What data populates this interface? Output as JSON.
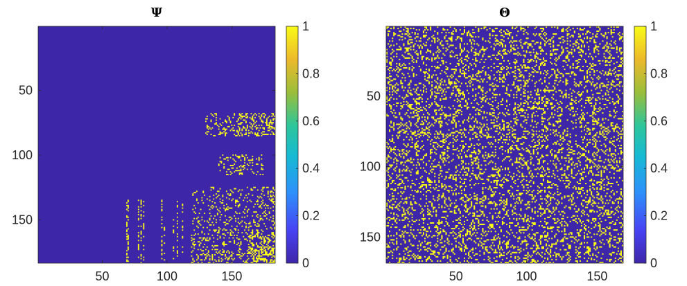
{
  "colors": {
    "background": "#3e26a8",
    "highlight": "#f9fb15",
    "colormap": [
      "#3e26a8",
      "#4743f3",
      "#2d91fb",
      "#16b9d4",
      "#2dc69b",
      "#9abe3b",
      "#ecb92b",
      "#f9fb15"
    ]
  },
  "chart_data": [
    {
      "type": "heatmap",
      "title": "Ψ",
      "matrix_size": [
        183,
        183
      ],
      "xlim": [
        1,
        183
      ],
      "ylim": [
        1,
        183
      ],
      "xticks": [
        50,
        100,
        150
      ],
      "yticks": [
        50,
        100,
        150
      ],
      "xtick_labels": [
        "50",
        "100",
        "150"
      ],
      "ytick_labels": [
        "50",
        "100",
        "150"
      ],
      "y_reversed": true,
      "value_range": [
        0,
        1
      ],
      "description_of_values": "binary matrix, mostly 0 with sparse 1 entries concentrated in lower-right region",
      "colorbar": {
        "ticks": [
          0,
          0.2,
          0.4,
          0.6,
          0.8,
          1
        ],
        "tick_labels": [
          "0",
          "0.2",
          "0.4",
          "0.6",
          "0.8",
          "1"
        ]
      }
    },
    {
      "type": "heatmap",
      "title": "Θ",
      "matrix_size": [
        168,
        168
      ],
      "xlim": [
        1,
        168
      ],
      "ylim": [
        1,
        168
      ],
      "xticks": [
        50,
        100,
        150
      ],
      "yticks": [
        50,
        100,
        150
      ],
      "xtick_labels": [
        "50",
        "100",
        "150"
      ],
      "ytick_labels": [
        "50",
        "100",
        "150"
      ],
      "y_reversed": true,
      "value_range": [
        0,
        1
      ],
      "description_of_values": "binary matrix with roughly uniform random scattered 1 entries (~20% density)",
      "colorbar": {
        "ticks": [
          0,
          0.2,
          0.4,
          0.6,
          0.8,
          1
        ],
        "tick_labels": [
          "0",
          "0.2",
          "0.4",
          "0.6",
          "0.8",
          "1"
        ]
      }
    }
  ]
}
